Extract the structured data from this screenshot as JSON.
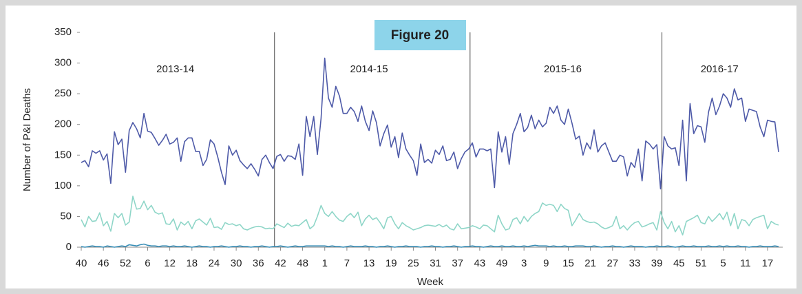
{
  "chart_data": {
    "type": "line",
    "figure_label": "Figure 20",
    "y_label": "Number of P&I Deaths",
    "x_label": "Week",
    "season_labels": [
      "2013-14",
      "2014-15",
      "2015-16",
      "2016-17"
    ],
    "categories": [
      "40",
      null,
      null,
      null,
      null,
      null,
      "46",
      null,
      null,
      null,
      null,
      null,
      "52",
      null,
      null,
      null,
      null,
      null,
      "6",
      null,
      null,
      null,
      null,
      null,
      "12",
      null,
      null,
      null,
      null,
      null,
      "18",
      null,
      null,
      null,
      null,
      null,
      "24",
      null,
      null,
      null,
      null,
      null,
      "30",
      null,
      null,
      null,
      null,
      null,
      "36",
      null,
      null,
      null,
      null,
      null,
      "42",
      null,
      null,
      null,
      null,
      null,
      "48",
      null,
      null,
      null,
      null,
      null,
      "1",
      null,
      null,
      null,
      null,
      null,
      "7",
      null,
      null,
      null,
      null,
      null,
      "13",
      null,
      null,
      null,
      null,
      null,
      "19",
      null,
      null,
      null,
      null,
      null,
      "25",
      null,
      null,
      null,
      null,
      null,
      "31",
      null,
      null,
      null,
      null,
      null,
      "37",
      null,
      null,
      null,
      null,
      null,
      "43",
      null,
      null,
      null,
      null,
      null,
      "49",
      null,
      null,
      null,
      null,
      null,
      "3",
      null,
      null,
      null,
      null,
      null,
      "9",
      null,
      null,
      null,
      null,
      null,
      "15",
      null,
      null,
      null,
      null,
      null,
      "21",
      null,
      null,
      null,
      null,
      null,
      "27",
      null,
      null,
      null,
      null,
      null,
      "33",
      null,
      null,
      null,
      null,
      null,
      "39",
      null,
      null,
      null,
      null,
      null,
      "45",
      null,
      null,
      null,
      null,
      null,
      "51",
      null,
      null,
      null,
      null,
      null,
      "5",
      null,
      null,
      null,
      null,
      null,
      "11",
      null,
      null,
      null,
      null,
      null,
      "17",
      null,
      null,
      null
    ],
    "series": [
      {
        "color": "#4e5aa8",
        "values": [
          138,
          141,
          131,
          157,
          153,
          157,
          142,
          152,
          104,
          188,
          167,
          176,
          122,
          190,
          203,
          193,
          178,
          218,
          189,
          187,
          177,
          166,
          174,
          184,
          168,
          171,
          178,
          140,
          172,
          178,
          178,
          156,
          156,
          133,
          143,
          175,
          168,
          147,
          122,
          102,
          165,
          150,
          158,
          141,
          134,
          128,
          136,
          127,
          116,
          143,
          150,
          138,
          128,
          148,
          151,
          140,
          149,
          148,
          143,
          168,
          117,
          213,
          180,
          213,
          151,
          210,
          308,
          243,
          228,
          262,
          246,
          218,
          218,
          228,
          221,
          205,
          230,
          205,
          190,
          222,
          203,
          165,
          185,
          199,
          163,
          180,
          146,
          186,
          160,
          150,
          141,
          117,
          168,
          138,
          143,
          137,
          158,
          151,
          165,
          141,
          143,
          155,
          128,
          144,
          155,
          160,
          170,
          147,
          160,
          160,
          157,
          160,
          97,
          188,
          155,
          180,
          135,
          185,
          200,
          218,
          188,
          195,
          215,
          193,
          207,
          196,
          202,
          228,
          218,
          230,
          207,
          200,
          225,
          202,
          176,
          181,
          150,
          170,
          160,
          191,
          155,
          165,
          170,
          155,
          140,
          140,
          150,
          147,
          116,
          138,
          130,
          160,
          108,
          173,
          168,
          160,
          167,
          95,
          180,
          165,
          160,
          162,
          133,
          207,
          108,
          234,
          185,
          198,
          196,
          171,
          220,
          243,
          216,
          230,
          250,
          243,
          228,
          258,
          240,
          243,
          205,
          225,
          223,
          221,
          196,
          180,
          207,
          205,
          204,
          155
        ]
      },
      {
        "color": "#8fd6c8",
        "values": [
          45,
          33,
          50,
          42,
          43,
          56,
          35,
          42,
          26,
          55,
          48,
          55,
          36,
          41,
          83,
          62,
          63,
          75,
          61,
          68,
          57,
          54,
          56,
          38,
          37,
          46,
          28,
          41,
          36,
          42,
          30,
          43,
          46,
          41,
          36,
          47,
          32,
          33,
          29,
          40,
          37,
          38,
          35,
          37,
          30,
          28,
          31,
          33,
          34,
          33,
          30,
          31,
          30,
          38,
          35,
          32,
          39,
          34,
          36,
          35,
          40,
          45,
          30,
          35,
          50,
          68,
          55,
          50,
          58,
          50,
          44,
          42,
          50,
          55,
          48,
          57,
          35,
          46,
          52,
          45,
          48,
          40,
          30,
          48,
          50,
          38,
          30,
          40,
          35,
          32,
          28,
          30,
          32,
          35,
          36,
          35,
          34,
          37,
          33,
          36,
          30,
          28,
          38,
          30,
          31,
          32,
          35,
          33,
          30,
          36,
          35,
          30,
          25,
          52,
          38,
          28,
          30,
          45,
          48,
          38,
          50,
          42,
          50,
          55,
          58,
          72,
          68,
          70,
          68,
          58,
          70,
          63,
          60,
          35,
          44,
          55,
          45,
          42,
          40,
          41,
          38,
          33,
          30,
          32,
          35,
          50,
          30,
          35,
          28,
          35,
          40,
          42,
          33,
          35,
          38,
          40,
          28,
          58,
          40,
          30,
          42,
          25,
          35,
          20,
          42,
          45,
          48,
          52,
          40,
          38,
          50,
          42,
          48,
          55,
          45,
          57,
          35,
          55,
          30,
          45,
          43,
          35,
          45,
          48,
          50,
          52,
          30,
          42,
          38,
          36
        ]
      },
      {
        "color": "#3a8fb7",
        "values": [
          1,
          0,
          1,
          2,
          1,
          1,
          0,
          2,
          1,
          0,
          1,
          2,
          1,
          4,
          3,
          2,
          4,
          5,
          3,
          2,
          2,
          1,
          2,
          2,
          1,
          2,
          1,
          1,
          2,
          1,
          0,
          1,
          2,
          1,
          1,
          0,
          1,
          1,
          2,
          1,
          0,
          1,
          1,
          2,
          1,
          1,
          0,
          1,
          1,
          2,
          1,
          0,
          1,
          1,
          2,
          1,
          0,
          1,
          2,
          1,
          1,
          2,
          2,
          2,
          2,
          2,
          2,
          1,
          2,
          1,
          1,
          0,
          1,
          2,
          1,
          1,
          1,
          2,
          1,
          1,
          0,
          1,
          1,
          2,
          1,
          0,
          1,
          1,
          2,
          1,
          1,
          1,
          0,
          1,
          1,
          2,
          1,
          1,
          0,
          1,
          1,
          2,
          1,
          0,
          1,
          1,
          2,
          1,
          1,
          0,
          1,
          2,
          1,
          1,
          2,
          1,
          1,
          2,
          1,
          1,
          2,
          1,
          2,
          3,
          2,
          2,
          2,
          1,
          2,
          1,
          1,
          2,
          1,
          1,
          2,
          2,
          2,
          1,
          1,
          2,
          1,
          0,
          1,
          1,
          2,
          1,
          1,
          0,
          1,
          2,
          1,
          1,
          1,
          0,
          1,
          1,
          2,
          1,
          1,
          2,
          1,
          0,
          1,
          2,
          1,
          1,
          2,
          1,
          1,
          1,
          2,
          1,
          1,
          2,
          1,
          2,
          1,
          1,
          2,
          1,
          1,
          0,
          1,
          1,
          2,
          1,
          1,
          1,
          2,
          1
        ]
      }
    ],
    "ylim": [
      0,
      350
    ],
    "yticks": [
      0,
      50,
      100,
      150,
      200,
      250,
      300,
      350
    ],
    "grid": false
  }
}
